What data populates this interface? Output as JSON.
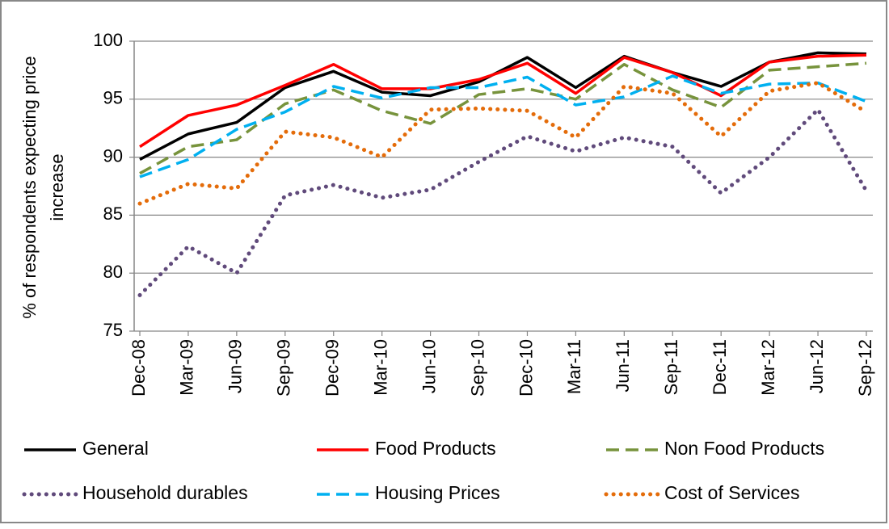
{
  "chart_data": {
    "type": "line",
    "y_label": [
      "% of respondents expecting price",
      "increase"
    ],
    "categories": [
      "Dec-08",
      "Mar-09",
      "Jun-09",
      "Sep-09",
      "Dec-09",
      "Mar-10",
      "Jun-10",
      "Sep-10",
      "Dec-10",
      "Mar-11",
      "Jun-11",
      "Sep-11",
      "Dec-11",
      "Mar-12",
      "Jun-12",
      "Sep-12"
    ],
    "ylim": [
      75,
      100
    ],
    "yticks": [
      75,
      80,
      85,
      90,
      95,
      100
    ],
    "grid": true,
    "series": [
      {
        "name": "General",
        "color": "#000000",
        "style": "solid",
        "values": [
          89.8,
          92,
          93,
          96,
          97.4,
          95.6,
          95.3,
          96.5,
          98.6,
          96,
          98.7,
          97.3,
          96.1,
          98.2,
          99,
          98.9
        ]
      },
      {
        "name": "Food Products",
        "color": "#ff0000",
        "style": "solid",
        "values": [
          90.9,
          93.6,
          94.5,
          96.2,
          98,
          95.9,
          95.9,
          96.7,
          98.1,
          95.5,
          98.6,
          97.3,
          95.3,
          98.2,
          98.7,
          98.8
        ]
      },
      {
        "name": "Non Food Products",
        "color": "#77933c",
        "style": "dashed",
        "values": [
          88.6,
          90.9,
          91.5,
          94.6,
          95.8,
          94,
          92.9,
          95.4,
          95.9,
          95,
          98,
          95.8,
          94.3,
          97.5,
          97.8,
          98.1
        ]
      },
      {
        "name": "Household durables",
        "color": "#604a7b",
        "style": "dotted",
        "values": [
          78.1,
          82.3,
          80,
          86.7,
          87.6,
          86.5,
          87.2,
          89.6,
          91.8,
          90.5,
          91.7,
          90.9,
          86.9,
          90,
          94.1,
          87.1
        ]
      },
      {
        "name": "Housing Prices",
        "color": "#00b0f0",
        "style": "dashed",
        "values": [
          88.3,
          89.8,
          92.4,
          93.9,
          96.1,
          95.1,
          96,
          96,
          96.9,
          94.5,
          95.2,
          97,
          95.5,
          96.3,
          96.4,
          94.8
        ]
      },
      {
        "name": "Cost of Services",
        "color": "#e46c0a",
        "style": "dotted",
        "values": [
          86,
          87.7,
          87.3,
          92.2,
          91.7,
          90,
          94.1,
          94.2,
          94,
          91.7,
          96.1,
          95.5,
          91.8,
          95.7,
          96.4,
          93.9
        ]
      }
    ]
  }
}
